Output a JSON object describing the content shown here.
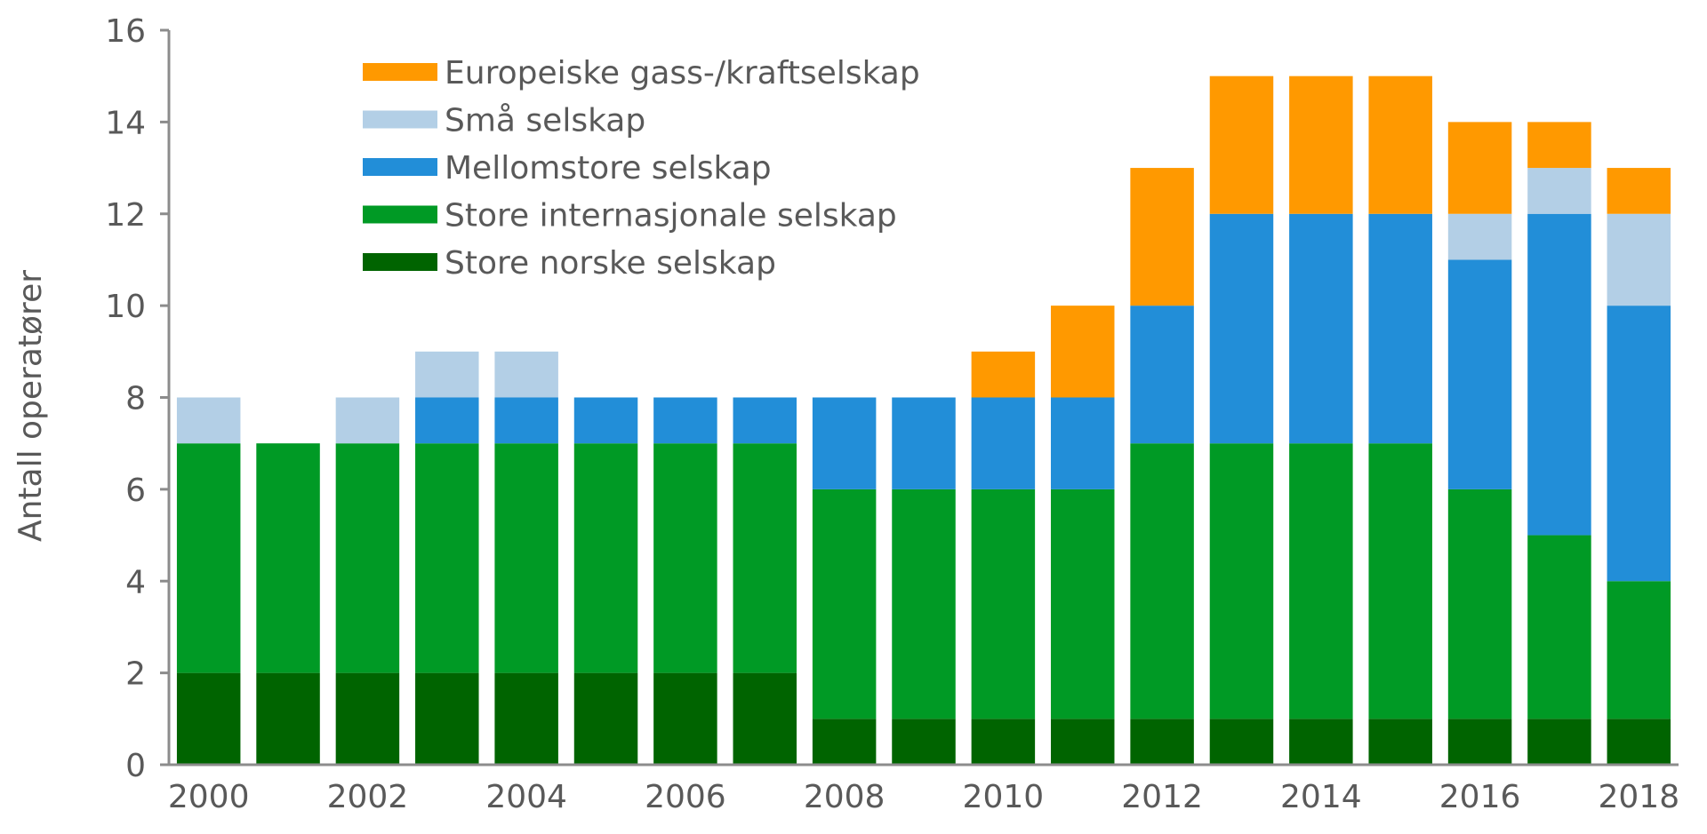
{
  "chart_data": {
    "type": "bar",
    "stacked": true,
    "ylabel": "Antall operatører",
    "xlabel": "",
    "ylim": [
      0,
      16
    ],
    "yticks": [
      0,
      2,
      4,
      6,
      8,
      10,
      12,
      14,
      16
    ],
    "categories": [
      "2000",
      "2001",
      "2002",
      "2003",
      "2004",
      "2005",
      "2006",
      "2007",
      "2008",
      "2009",
      "2010",
      "2011",
      "2012",
      "2013",
      "2014",
      "2015",
      "2016",
      "2017",
      "2018"
    ],
    "xtick_labels": [
      "2000",
      "2002",
      "2004",
      "2006",
      "2008",
      "2010",
      "2012",
      "2014",
      "2016",
      "2018"
    ],
    "legend_position": "top-left",
    "series": [
      {
        "name": "Store norske selskap",
        "color": "#006400",
        "values": [
          2,
          2,
          2,
          2,
          2,
          2,
          2,
          2,
          1,
          1,
          1,
          1,
          1,
          1,
          1,
          1,
          1,
          1,
          1
        ]
      },
      {
        "name": "Store internasjonale selskap",
        "color": "#009a25",
        "values": [
          5,
          5,
          5,
          5,
          5,
          5,
          5,
          5,
          5,
          5,
          5,
          5,
          6,
          6,
          6,
          6,
          5,
          4,
          3
        ]
      },
      {
        "name": "Mellomstore selskap",
        "color": "#228ed8",
        "values": [
          0,
          0,
          0,
          1,
          1,
          1,
          1,
          1,
          2,
          2,
          2,
          2,
          3,
          5,
          5,
          5,
          5,
          7,
          6
        ]
      },
      {
        "name": "Små selskap",
        "color": "#b3cfe6",
        "values": [
          1,
          0,
          1,
          1,
          1,
          0,
          0,
          0,
          0,
          0,
          0,
          0,
          0,
          0,
          0,
          0,
          1,
          1,
          2
        ]
      },
      {
        "name": "Europeiske gass-/kraftselskap",
        "color": "#ff9900",
        "values": [
          0,
          0,
          0,
          0,
          0,
          0,
          0,
          0,
          0,
          0,
          1,
          2,
          3,
          3,
          3,
          3,
          2,
          1,
          1
        ]
      }
    ]
  }
}
